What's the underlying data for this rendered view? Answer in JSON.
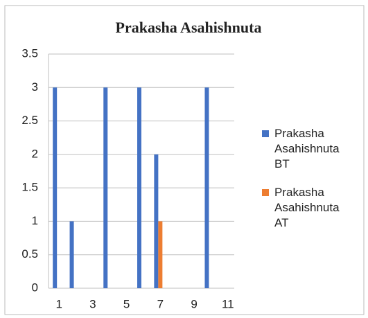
{
  "chart_data": {
    "type": "bar",
    "title": "Prakasha Asahishnuta",
    "categories": [
      1,
      null,
      3,
      null,
      5,
      null,
      7,
      null,
      9,
      null,
      11
    ],
    "series": [
      {
        "name": "Prakasha Asahishnuta BT",
        "color": "#4472c4",
        "values": [
          3,
          1,
          null,
          3,
          null,
          3,
          2,
          null,
          null,
          3,
          null
        ]
      },
      {
        "name": "Prakasha Asahishnuta AT",
        "color": "#ed7d31",
        "values": [
          null,
          null,
          null,
          null,
          null,
          null,
          1,
          null,
          null,
          null,
          null
        ]
      }
    ],
    "ylim": [
      0,
      3.5
    ],
    "yticks": [
      0,
      0.5,
      1,
      1.5,
      2,
      2.5,
      3,
      3.5
    ],
    "grid": true,
    "legend": "right"
  }
}
